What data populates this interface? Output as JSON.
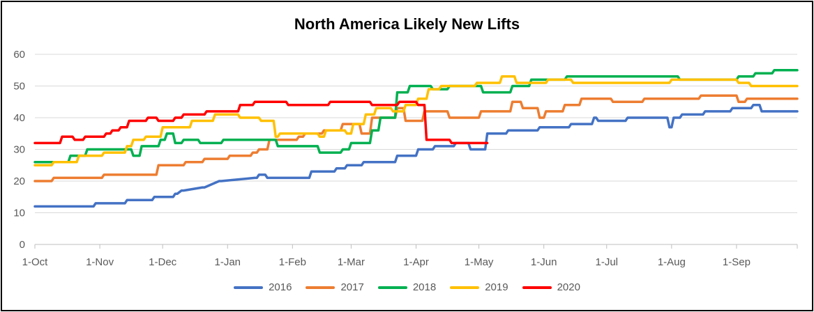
{
  "chart_data": {
    "type": "line",
    "title": "North America Likely New Lifts",
    "xlabel": "",
    "ylabel": "",
    "ylim": [
      0,
      60
    ],
    "yticks": [
      0,
      10,
      20,
      30,
      40,
      50,
      60
    ],
    "x_domain": [
      0,
      364
    ],
    "categories": [
      "1-Oct",
      "1-Nov",
      "1-Dec",
      "1-Jan",
      "1-Feb",
      "1-Mar",
      "1-Apr",
      "1-May",
      "1-Jun",
      "1-Jul",
      "1-Aug",
      "1-Sep"
    ],
    "category_days": [
      0,
      31,
      61,
      92,
      123,
      151,
      182,
      212,
      243,
      273,
      304,
      335
    ],
    "grid": true,
    "legend_position": "bottom",
    "series": [
      {
        "name": "2016",
        "color": "#4472C4",
        "x": [
          0,
          28,
          29,
          43,
          44,
          56,
          57,
          66,
          67,
          68,
          70,
          71,
          80,
          81,
          88,
          89,
          105,
          106,
          107,
          110,
          111,
          131,
          132,
          143,
          144,
          148,
          149,
          156,
          157,
          172,
          173,
          182,
          183,
          190,
          191,
          200,
          201,
          207,
          208,
          215,
          216,
          225,
          226,
          240,
          241,
          255,
          256,
          266,
          267,
          268,
          269,
          282,
          283,
          302,
          303,
          304,
          305,
          308,
          309,
          319,
          320,
          332,
          333,
          342,
          343,
          346,
          347,
          364
        ],
        "y": [
          12,
          12,
          13,
          13,
          14,
          14,
          15,
          15,
          16,
          16,
          17,
          17,
          18,
          18,
          20,
          20,
          21,
          21,
          22,
          22,
          21,
          21,
          23,
          23,
          24,
          24,
          25,
          25,
          26,
          26,
          28,
          28,
          30,
          30,
          31,
          31,
          32,
          32,
          30,
          30,
          35,
          35,
          36,
          36,
          37,
          37,
          38,
          38,
          40,
          40,
          39,
          39,
          40,
          40,
          37,
          37,
          40,
          40,
          41,
          41,
          42,
          42,
          43,
          43,
          44,
          44,
          42,
          42
        ]
      },
      {
        "name": "2017",
        "color": "#ED7D31",
        "x": [
          0,
          8,
          9,
          32,
          33,
          58,
          59,
          71,
          72,
          80,
          81,
          92,
          93,
          103,
          104,
          106,
          107,
          111,
          112,
          125,
          126,
          128,
          129,
          137,
          138,
          146,
          147,
          155,
          156,
          160,
          161,
          172,
          173,
          176,
          177,
          185,
          186,
          197,
          198,
          212,
          213,
          227,
          228,
          232,
          233,
          240,
          241,
          243,
          244,
          252,
          253,
          260,
          261,
          275,
          276,
          290,
          291,
          317,
          318,
          335,
          336,
          339,
          340,
          364
        ],
        "y": [
          20,
          20,
          21,
          21,
          22,
          22,
          25,
          25,
          26,
          26,
          27,
          27,
          28,
          28,
          29,
          29,
          30,
          30,
          33,
          33,
          34,
          34,
          35,
          35,
          36,
          36,
          38,
          38,
          35,
          35,
          40,
          40,
          43,
          43,
          39,
          39,
          42,
          42,
          40,
          40,
          42,
          42,
          45,
          45,
          43,
          43,
          40,
          40,
          42,
          42,
          44,
          44,
          46,
          46,
          45,
          45,
          46,
          46,
          47,
          47,
          45,
          45,
          46,
          46
        ]
      },
      {
        "name": "2018",
        "color": "#00B050",
        "x": [
          0,
          16,
          17,
          24,
          25,
          46,
          47,
          50,
          51,
          59,
          60,
          62,
          63,
          66,
          67,
          70,
          71,
          78,
          79,
          89,
          90,
          115,
          116,
          135,
          136,
          146,
          147,
          150,
          151,
          160,
          161,
          164,
          165,
          172,
          173,
          178,
          179,
          189,
          190,
          197,
          198,
          213,
          214,
          227,
          228,
          236,
          237,
          253,
          254,
          307,
          308,
          335,
          336,
          343,
          344,
          352,
          353,
          364
        ],
        "y": [
          26,
          26,
          28,
          28,
          30,
          30,
          28,
          28,
          31,
          31,
          33,
          33,
          35,
          35,
          32,
          32,
          33,
          33,
          32,
          32,
          33,
          33,
          31,
          31,
          29,
          29,
          30,
          30,
          32,
          32,
          36,
          36,
          40,
          40,
          48,
          48,
          50,
          50,
          49,
          49,
          50,
          50,
          48,
          48,
          50,
          50,
          52,
          52,
          53,
          53,
          52,
          52,
          53,
          53,
          54,
          54,
          55,
          55
        ]
      },
      {
        "name": "2019",
        "color": "#FFC000",
        "x": [
          0,
          8,
          9,
          20,
          21,
          32,
          33,
          43,
          44,
          46,
          47,
          52,
          53,
          60,
          61,
          74,
          75,
          85,
          86,
          97,
          98,
          107,
          108,
          114,
          115,
          116,
          117,
          135,
          136,
          138,
          139,
          148,
          149,
          151,
          152,
          157,
          158,
          162,
          163,
          170,
          171,
          176,
          177,
          182,
          183,
          187,
          188,
          193,
          194,
          210,
          211,
          222,
          223,
          229,
          230,
          244,
          245,
          256,
          257,
          303,
          304,
          335,
          336,
          341,
          342,
          364
        ],
        "y": [
          25,
          25,
          26,
          26,
          28,
          28,
          29,
          29,
          31,
          31,
          33,
          33,
          34,
          34,
          37,
          37,
          39,
          39,
          41,
          41,
          40,
          40,
          39,
          39,
          34,
          34,
          35,
          35,
          34,
          34,
          36,
          36,
          35,
          35,
          38,
          38,
          41,
          41,
          43,
          43,
          42,
          42,
          44,
          44,
          46,
          46,
          49,
          49,
          50,
          50,
          51,
          51,
          53,
          53,
          51,
          51,
          52,
          52,
          51,
          51,
          52,
          52,
          51,
          51,
          50,
          50
        ]
      },
      {
        "name": "2020",
        "color": "#FF0000",
        "x": [
          0,
          12,
          13,
          18,
          19,
          23,
          24,
          33,
          34,
          36,
          37,
          40,
          41,
          44,
          45,
          53,
          54,
          58,
          59,
          66,
          67,
          70,
          71,
          81,
          82,
          97,
          98,
          104,
          105,
          120,
          121,
          140,
          141,
          160,
          161,
          173,
          174,
          182,
          183,
          186,
          187,
          198,
          199,
          216
        ],
        "y": [
          32,
          32,
          34,
          34,
          33,
          33,
          34,
          34,
          35,
          35,
          36,
          36,
          37,
          37,
          39,
          39,
          40,
          40,
          39,
          39,
          40,
          40,
          41,
          41,
          42,
          42,
          44,
          44,
          45,
          45,
          44,
          44,
          45,
          45,
          44,
          44,
          45,
          45,
          44,
          44,
          33,
          33,
          32,
          32
        ]
      }
    ]
  }
}
